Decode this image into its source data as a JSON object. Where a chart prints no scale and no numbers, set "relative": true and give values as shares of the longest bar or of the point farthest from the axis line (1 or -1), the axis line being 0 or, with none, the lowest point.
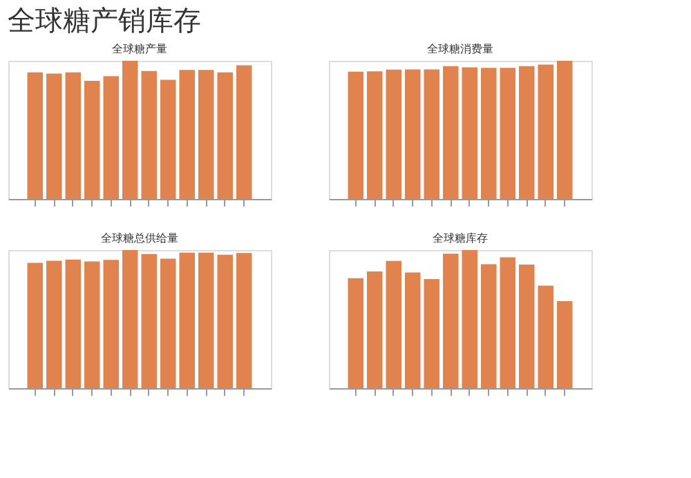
{
  "chart_data": [
    {
      "type": "other",
      "title": "全球糖产销库存"
    },
    {
      "type": "bar",
      "title": "全球糖产量",
      "relative": true,
      "categories": [
        null,
        null,
        null,
        null,
        null,
        null,
        null,
        null,
        null,
        null,
        null,
        null
      ],
      "values": [
        0.916,
        0.908,
        0.916,
        0.855,
        0.889,
        1,
        0.926,
        0.863,
        0.934,
        0.934,
        0.916,
        0.968
      ],
      "color": "#e0834f"
    },
    {
      "type": "bar",
      "title": "全球糖消费量",
      "relative": true,
      "categories": [
        null,
        null,
        null,
        null,
        null,
        null,
        null,
        null,
        null,
        null,
        null,
        null
      ],
      "values": [
        0.921,
        0.924,
        0.936,
        0.938,
        0.938,
        0.961,
        0.953,
        0.949,
        0.949,
        0.961,
        0.972,
        1
      ],
      "color": "#e0834f"
    },
    {
      "type": "bar",
      "title": "全球糖总供给量",
      "relative": true,
      "categories": [
        null,
        null,
        null,
        null,
        null,
        null,
        null,
        null,
        null,
        null,
        null,
        null
      ],
      "values": [
        0.907,
        0.923,
        0.931,
        0.918,
        0.929,
        1,
        0.971,
        0.937,
        0.981,
        0.981,
        0.966,
        0.979
      ],
      "color": "#e0834f"
    },
    {
      "type": "bar",
      "title": "全球糖库存",
      "relative": true,
      "categories": [
        null,
        null,
        null,
        null,
        null,
        null,
        null,
        null,
        null,
        null,
        null,
        null
      ],
      "values": [
        0.796,
        0.845,
        0.921,
        0.837,
        0.79,
        0.974,
        1,
        0.898,
        0.948,
        0.895,
        0.743,
        0.63
      ],
      "color": "#e0834f"
    }
  ]
}
